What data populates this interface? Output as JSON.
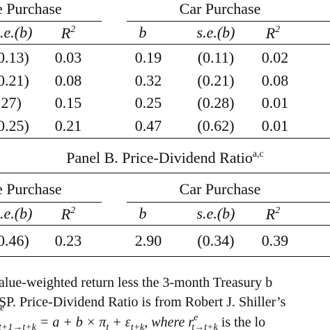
{
  "panel_a": {
    "groups": [
      "e Purchase",
      "Car Purchase"
    ],
    "columns": [
      ".e.(b)",
      "R",
      "2",
      "b",
      "s.e.(b)",
      "R",
      "2"
    ],
    "rows": [
      [
        "0.13)",
        "0.03",
        "0.19",
        "(0.11)",
        "0.02"
      ],
      [
        "0.21)",
        "0.08",
        "0.32",
        "(0.21)",
        "0.08"
      ],
      [
        ".27)",
        "0.15",
        "0.25",
        "(0.28)",
        "0.01"
      ],
      [
        "0.25)",
        "0.21",
        "0.47",
        "(0.62)",
        "0.01"
      ]
    ]
  },
  "panel_b": {
    "title": "Panel B. Price-Dividend Ratio",
    "title_sup": "a,c",
    "groups": [
      "e Purchase",
      "Car Purchase"
    ],
    "columns": [
      ".e.(b)",
      "R",
      "2",
      "b",
      "s.e.(b)",
      "R",
      "2"
    ],
    "rows": [
      [
        "0.46)",
        "0.23",
        "2.90",
        "(0.34)",
        "0.39"
      ]
    ]
  },
  "notes": [
    "alue-weighted return less the 3-month Treasury b",
    "SP. Price-Dividend Ratio is from Robert J. Shiller’s",
    [
      "e",
      "t+1→t+k",
      " = a + b × π",
      "t",
      " + ε",
      "t+k",
      ", where r",
      "e",
      "t→t+k",
      " is the lo"
    ]
  ]
}
